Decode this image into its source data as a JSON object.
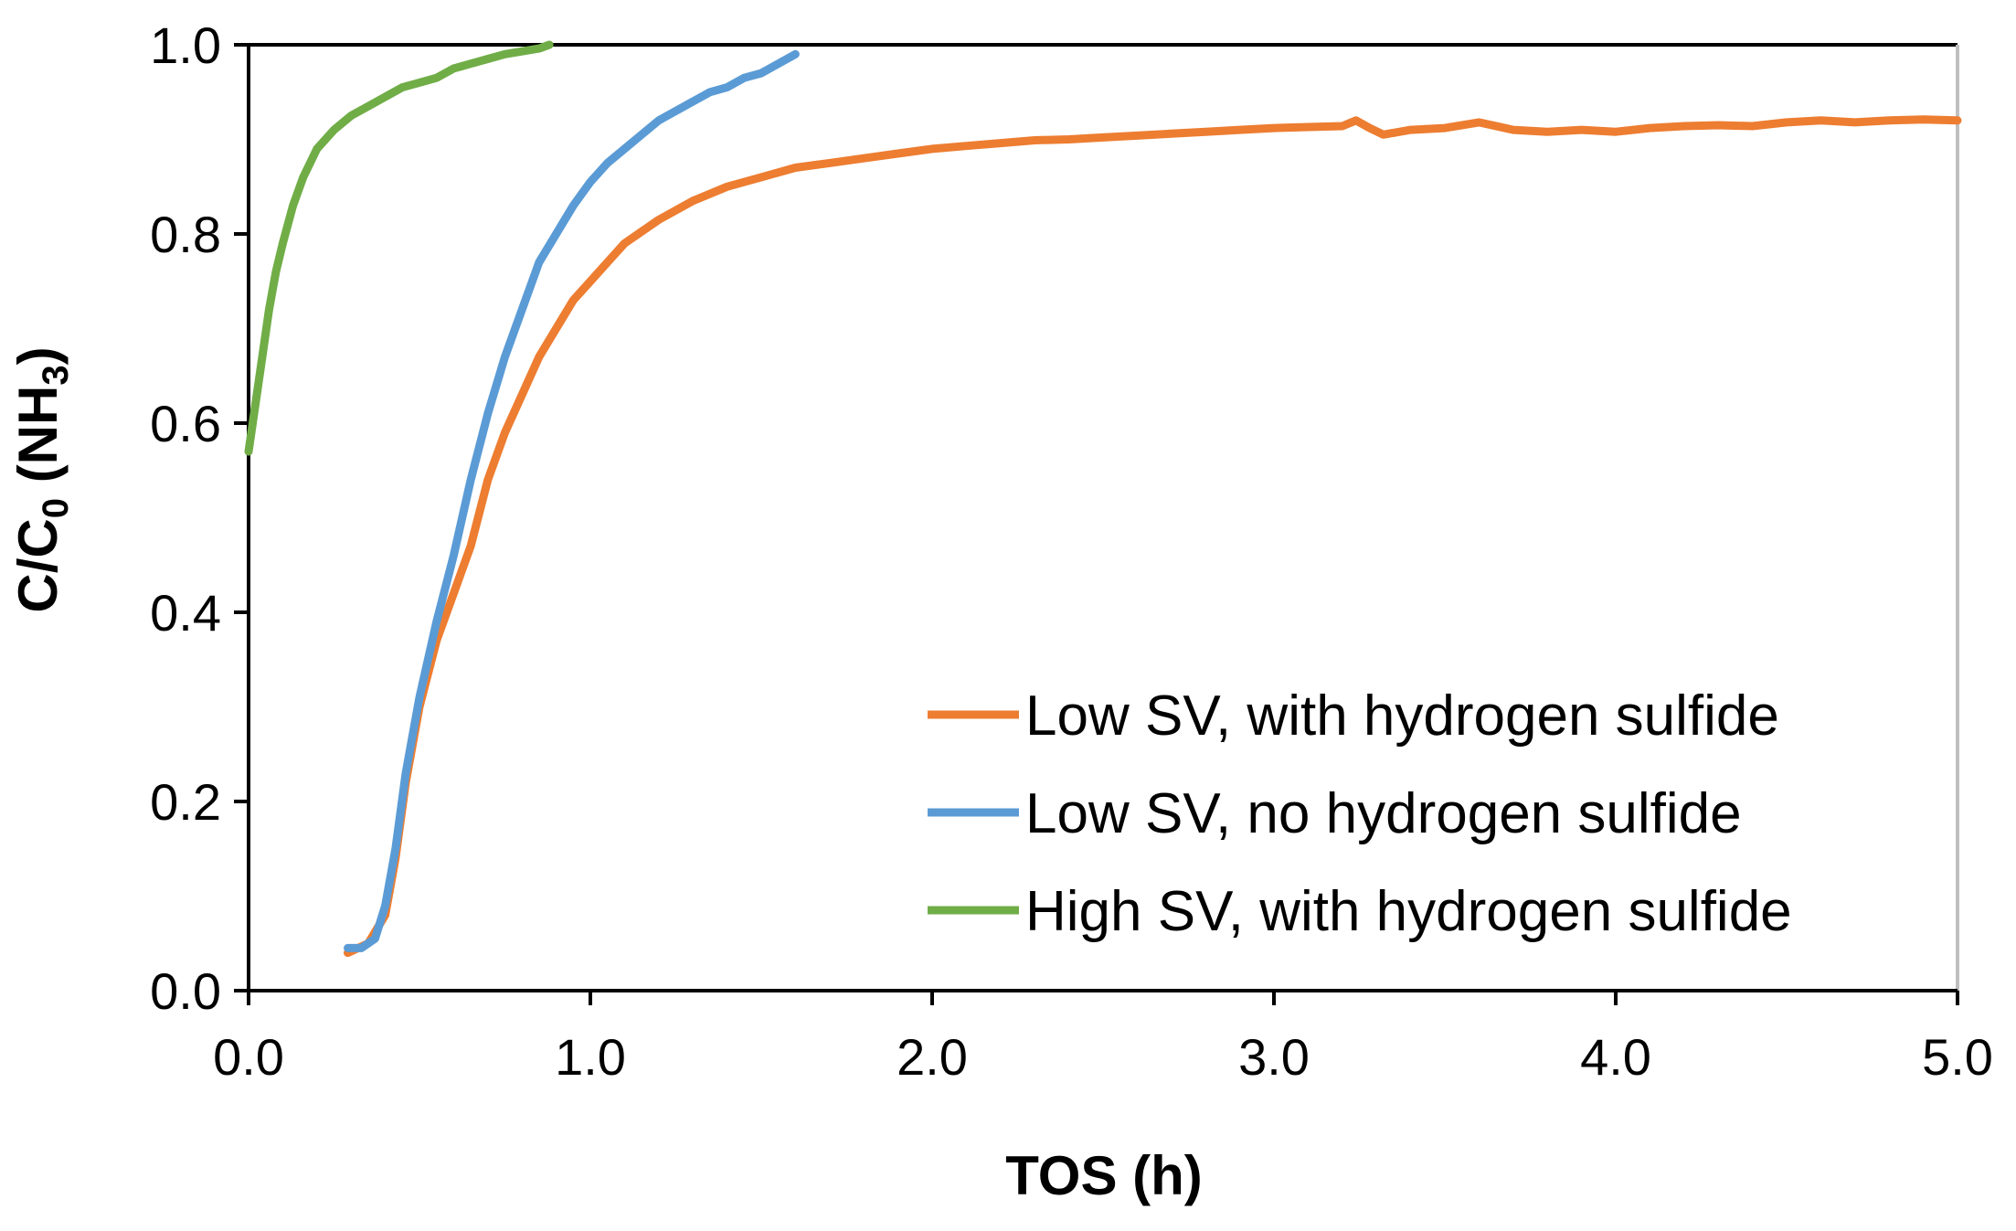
{
  "chart_data": {
    "type": "line",
    "title": "",
    "xlabel": "TOS (h)",
    "ylabel": {
      "base": "C/C",
      "base_sub": "0",
      "species_open": " (NH",
      "species_sub": "3",
      "species_close": ")"
    },
    "xlim": [
      0,
      5
    ],
    "ylim": [
      0,
      1
    ],
    "x_ticks": [
      0,
      1,
      2,
      3,
      4,
      5
    ],
    "x_tick_labels": [
      "0.0",
      "1.0",
      "2.0",
      "3.0",
      "4.0",
      "5.0"
    ],
    "y_ticks": [
      0,
      0.2,
      0.4,
      0.6,
      0.8,
      1.0
    ],
    "y_tick_labels": [
      "0.0",
      "0.2",
      "0.4",
      "0.6",
      "0.8",
      "1.0"
    ],
    "grid": false,
    "legend_position": "bottom-right",
    "series": [
      {
        "name": "Low SV, with hydrogen sulfide",
        "color": "#ED7D31",
        "x": [
          0.29,
          0.35,
          0.4,
          0.43,
          0.46,
          0.5,
          0.55,
          0.6,
          0.65,
          0.7,
          0.75,
          0.8,
          0.85,
          0.9,
          0.95,
          1.0,
          1.05,
          1.1,
          1.2,
          1.3,
          1.4,
          1.5,
          1.6,
          1.7,
          1.8,
          1.9,
          2.0,
          2.1,
          2.2,
          2.3,
          2.4,
          2.5,
          2.6,
          2.7,
          2.8,
          2.9,
          3.0,
          3.1,
          3.2,
          3.24,
          3.28,
          3.32,
          3.4,
          3.5,
          3.6,
          3.7,
          3.8,
          3.9,
          4.0,
          4.1,
          4.2,
          4.3,
          4.4,
          4.5,
          4.6,
          4.7,
          4.8,
          4.9,
          5.0
        ],
        "y": [
          0.04,
          0.05,
          0.08,
          0.14,
          0.22,
          0.3,
          0.37,
          0.42,
          0.47,
          0.54,
          0.59,
          0.63,
          0.67,
          0.7,
          0.73,
          0.75,
          0.77,
          0.79,
          0.815,
          0.835,
          0.85,
          0.86,
          0.87,
          0.875,
          0.88,
          0.885,
          0.89,
          0.893,
          0.896,
          0.899,
          0.9,
          0.902,
          0.904,
          0.906,
          0.908,
          0.91,
          0.912,
          0.913,
          0.914,
          0.92,
          0.912,
          0.905,
          0.91,
          0.912,
          0.918,
          0.91,
          0.908,
          0.91,
          0.908,
          0.912,
          0.914,
          0.915,
          0.914,
          0.918,
          0.92,
          0.918,
          0.92,
          0.921,
          0.92
        ]
      },
      {
        "name": "Low SV, no hydrogen sulfide",
        "color": "#5B9BD5",
        "x": [
          0.29,
          0.33,
          0.37,
          0.4,
          0.43,
          0.46,
          0.5,
          0.55,
          0.6,
          0.65,
          0.7,
          0.75,
          0.8,
          0.85,
          0.9,
          0.95,
          1.0,
          1.05,
          1.1,
          1.15,
          1.2,
          1.25,
          1.3,
          1.35,
          1.4,
          1.45,
          1.5,
          1.55,
          1.6
        ],
        "y": [
          0.045,
          0.045,
          0.055,
          0.09,
          0.15,
          0.23,
          0.31,
          0.39,
          0.46,
          0.54,
          0.61,
          0.67,
          0.72,
          0.77,
          0.8,
          0.83,
          0.855,
          0.875,
          0.89,
          0.905,
          0.92,
          0.93,
          0.94,
          0.95,
          0.955,
          0.965,
          0.97,
          0.98,
          0.99
        ]
      },
      {
        "name": "High SV, with hydrogen sulfide",
        "color": "#70AD47",
        "x": [
          0.0,
          0.02,
          0.04,
          0.06,
          0.08,
          0.1,
          0.13,
          0.16,
          0.2,
          0.25,
          0.3,
          0.35,
          0.4,
          0.45,
          0.5,
          0.55,
          0.6,
          0.65,
          0.7,
          0.75,
          0.8,
          0.85,
          0.88
        ],
        "y": [
          0.57,
          0.62,
          0.67,
          0.72,
          0.76,
          0.79,
          0.83,
          0.86,
          0.89,
          0.91,
          0.925,
          0.935,
          0.945,
          0.955,
          0.96,
          0.965,
          0.975,
          0.98,
          0.985,
          0.99,
          0.993,
          0.996,
          1.0
        ]
      }
    ]
  }
}
